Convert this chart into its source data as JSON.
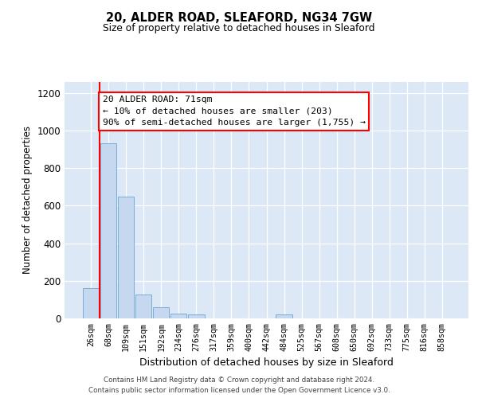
{
  "title": "20, ALDER ROAD, SLEAFORD, NG34 7GW",
  "subtitle": "Size of property relative to detached houses in Sleaford",
  "xlabel": "Distribution of detached houses by size in Sleaford",
  "ylabel": "Number of detached properties",
  "bar_labels": [
    "26sqm",
    "68sqm",
    "109sqm",
    "151sqm",
    "192sqm",
    "234sqm",
    "276sqm",
    "317sqm",
    "359sqm",
    "400sqm",
    "442sqm",
    "484sqm",
    "525sqm",
    "567sqm",
    "608sqm",
    "650sqm",
    "692sqm",
    "733sqm",
    "775sqm",
    "816sqm",
    "858sqm"
  ],
  "bar_values": [
    160,
    930,
    650,
    125,
    60,
    25,
    20,
    0,
    0,
    0,
    0,
    20,
    0,
    0,
    0,
    0,
    0,
    0,
    0,
    0,
    0
  ],
  "bar_color": "#c5d8f0",
  "bar_edgecolor": "#7aadd4",
  "plot_bg_color": "#dce8f5",
  "red_line_x": 0.5,
  "ylim": [
    0,
    1260
  ],
  "yticks": [
    0,
    200,
    400,
    600,
    800,
    1000,
    1200
  ],
  "annotation_text_line1": "20 ALDER ROAD: 71sqm",
  "annotation_text_line2": "← 10% of detached houses are smaller (203)",
  "annotation_text_line3": "90% of semi-detached houses are larger (1,755) →",
  "footer_line1": "Contains HM Land Registry data © Crown copyright and database right 2024.",
  "footer_line2": "Contains public sector information licensed under the Open Government Licence v3.0."
}
